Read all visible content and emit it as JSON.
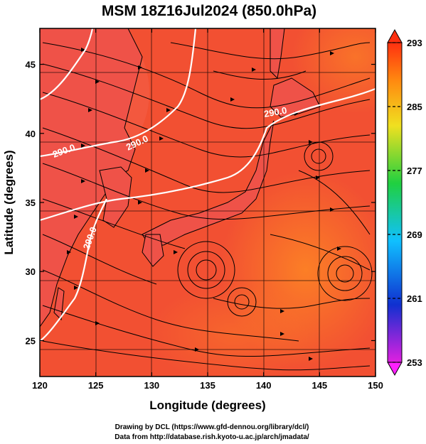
{
  "title": "MSM 18Z16Jul2024 (850.0hPa)",
  "xlabel": "Longitude (degrees)",
  "ylabel": "Latitude  (degrees)",
  "credits": [
    "Drawing by DCL (https://www.gfd-dennou.org/library/dcl/)",
    "Data from http://database.rish.kyoto-u.ac.jp/arch/jmadata/"
  ],
  "chart_data": {
    "type": "heatmap",
    "title": "MSM 18Z16Jul2024 (850.0hPa)",
    "xlabel": "Longitude (degrees)",
    "ylabel": "Latitude  (degrees)",
    "xlim": [
      120,
      150
    ],
    "ylim": [
      22.4,
      47.6
    ],
    "xticks": [
      120,
      125,
      130,
      135,
      140,
      145,
      150
    ],
    "yticks": [
      25,
      30,
      35,
      40,
      45
    ],
    "grid": true,
    "colorbar": {
      "range": [
        253,
        293
      ],
      "ticks": [
        253,
        261,
        269,
        277,
        285,
        293
      ],
      "colors": [
        "#e020e0",
        "#1040e0",
        "#10c0ff",
        "#20d040",
        "#f0e020",
        "#ff3010"
      ]
    },
    "contours": [
      {
        "label": "290.0",
        "value": 290.0
      }
    ],
    "background_color": "#f44a2c"
  }
}
